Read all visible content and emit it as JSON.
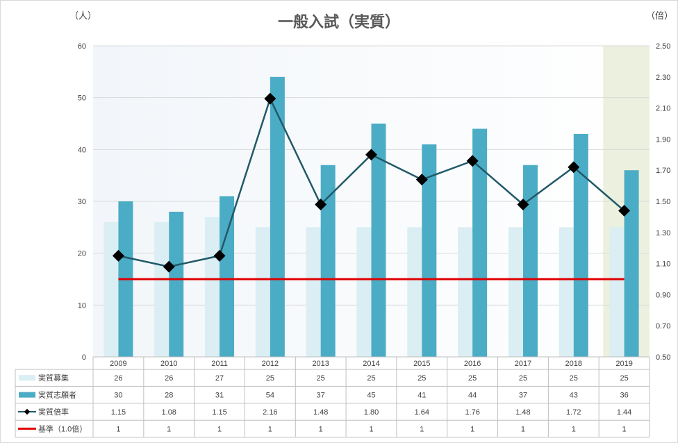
{
  "title": "一般入試（実質）",
  "units": {
    "left": "（人）",
    "right": "（倍）"
  },
  "colors": {
    "recruit": "#daeef3",
    "applicants": "#4bacc6",
    "ratio": "#215968",
    "baseline": "#e00000",
    "highlight": "#ebf1de",
    "grid": "#d9d9d9"
  },
  "chart_data": {
    "type": "bar",
    "categories": [
      "2009",
      "2010",
      "2011",
      "2012",
      "2013",
      "2014",
      "2015",
      "2016",
      "2017",
      "2018",
      "2019"
    ],
    "y_left": {
      "ylim": [
        0,
        60
      ],
      "ticks": [
        "0",
        "10",
        "20",
        "30",
        "40",
        "50",
        "60"
      ]
    },
    "y_right": {
      "ylim": [
        0.5,
        2.5
      ],
      "ticks": [
        "0.50",
        "0.70",
        "0.90",
        "1.10",
        "1.30",
        "1.50",
        "1.70",
        "1.90",
        "2.10",
        "2.30",
        "2.50"
      ]
    },
    "series": [
      {
        "name": "実質募集",
        "type": "bar",
        "axis": "left",
        "values": [
          26,
          26,
          27,
          25,
          25,
          25,
          25,
          25,
          25,
          25,
          25
        ],
        "labels": [
          "26",
          "26",
          "27",
          "25",
          "25",
          "25",
          "25",
          "25",
          "25",
          "25",
          "25"
        ]
      },
      {
        "name": "実質志願者",
        "type": "bar",
        "axis": "left",
        "values": [
          30,
          28,
          31,
          54,
          37,
          45,
          41,
          44,
          37,
          43,
          36
        ],
        "labels": [
          "30",
          "28",
          "31",
          "54",
          "37",
          "45",
          "41",
          "44",
          "37",
          "43",
          "36"
        ]
      },
      {
        "name": "実質倍率",
        "type": "line",
        "axis": "right",
        "values": [
          1.15,
          1.08,
          1.15,
          2.16,
          1.48,
          1.8,
          1.64,
          1.76,
          1.48,
          1.72,
          1.44
        ],
        "labels": [
          "1.15",
          "1.08",
          "1.15",
          "2.16",
          "1.48",
          "1.80",
          "1.64",
          "1.76",
          "1.48",
          "1.72",
          "1.44"
        ]
      },
      {
        "name": "基準（1.0倍）",
        "type": "line",
        "axis": "right",
        "values": [
          1,
          1,
          1,
          1,
          1,
          1,
          1,
          1,
          1,
          1,
          1
        ],
        "labels": [
          "1",
          "1",
          "1",
          "1",
          "1",
          "1",
          "1",
          "1",
          "1",
          "1",
          "1"
        ]
      }
    ],
    "legend": "data-table-below"
  }
}
